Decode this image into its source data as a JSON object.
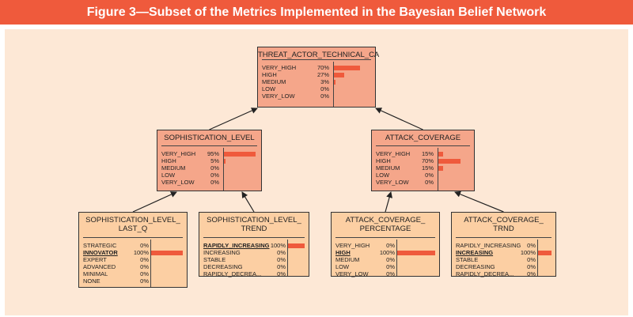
{
  "figure": {
    "title": "Figure 3—Subset of the Metrics Implemented in the Bayesian Belief Network"
  },
  "colors": {
    "title_bar": "#ef5a3c",
    "panel": "#fde8d6",
    "inner_node": "#f5a68a",
    "leaf_node": "#fccfa3",
    "bar": "#ef5a3c"
  },
  "nodes": [
    {
      "id": "threat",
      "title_lines": [
        "THREAT_ACTOR_TECHNICAL_CA"
      ],
      "tier": "inner",
      "states": [
        {
          "label": "VERY_HIGH",
          "pct": "70%",
          "value": 70
        },
        {
          "label": "HIGH",
          "pct": "27%",
          "value": 27
        },
        {
          "label": "MEDIUM",
          "pct": "3%",
          "value": 3
        },
        {
          "label": "LOW",
          "pct": "0%",
          "value": 0
        },
        {
          "label": "VERY_LOW",
          "pct": "0%",
          "value": 0
        }
      ]
    },
    {
      "id": "soph",
      "title_lines": [
        "SOPHISTICATION_LEVEL"
      ],
      "tier": "inner",
      "states": [
        {
          "label": "VERY_HIGH",
          "pct": "95%",
          "value": 95
        },
        {
          "label": "HIGH",
          "pct": "5%",
          "value": 5
        },
        {
          "label": "MEDIUM",
          "pct": "0%",
          "value": 0
        },
        {
          "label": "LOW",
          "pct": "0%",
          "value": 0
        },
        {
          "label": "VERY_LOW",
          "pct": "0%",
          "value": 0
        }
      ]
    },
    {
      "id": "attack",
      "title_lines": [
        "ATTACK_COVERAGE"
      ],
      "tier": "inner",
      "states": [
        {
          "label": "VERY_HIGH",
          "pct": "15%",
          "value": 15
        },
        {
          "label": "HIGH",
          "pct": "70%",
          "value": 70
        },
        {
          "label": "MEDIUM",
          "pct": "15%",
          "value": 15
        },
        {
          "label": "LOW",
          "pct": "0%",
          "value": 0
        },
        {
          "label": "VERY_LOW",
          "pct": "0%",
          "value": 0
        }
      ]
    },
    {
      "id": "soph_last",
      "title_lines": [
        "SOPHISTICATION_LEVEL_",
        "LAST_Q"
      ],
      "tier": "leaf",
      "states": [
        {
          "label": "STRATEGIC",
          "pct": "0%",
          "value": 0
        },
        {
          "label": "INNOVATOR",
          "pct": "100%",
          "value": 100,
          "selected": true
        },
        {
          "label": "EXPERT",
          "pct": "0%",
          "value": 0
        },
        {
          "label": "ADVANCED",
          "pct": "0%",
          "value": 0
        },
        {
          "label": "MINIMAL",
          "pct": "0%",
          "value": 0
        },
        {
          "label": "NONE",
          "pct": "0%",
          "value": 0
        }
      ]
    },
    {
      "id": "soph_trend",
      "title_lines": [
        "SOPHISTICATION_LEVEL_",
        "TREND"
      ],
      "tier": "leaf",
      "states": [
        {
          "label": "RAPIDLY_INCREASING",
          "pct": "100%",
          "value": 100,
          "selected": true
        },
        {
          "label": "INCREASING",
          "pct": "0%",
          "value": 0
        },
        {
          "label": "STABLE",
          "pct": "0%",
          "value": 0
        },
        {
          "label": "DECREASING",
          "pct": "0%",
          "value": 0
        },
        {
          "label": "RAPIDLY_DECREA...",
          "pct": "0%",
          "value": 0
        }
      ]
    },
    {
      "id": "attack_pct",
      "title_lines": [
        "ATTACK_COVERAGE_",
        "PERCENTAGE"
      ],
      "tier": "leaf",
      "states": [
        {
          "label": "VERY_HIGH",
          "pct": "0%",
          "value": 0
        },
        {
          "label": "HIGH",
          "pct": "100%",
          "value": 100,
          "selected": true
        },
        {
          "label": "MEDIUM",
          "pct": "0%",
          "value": 0
        },
        {
          "label": "LOW",
          "pct": "0%",
          "value": 0
        },
        {
          "label": "VERY_LOW",
          "pct": "0%",
          "value": 0
        }
      ]
    },
    {
      "id": "attack_trnd",
      "title_lines": [
        "ATTACK_COVERAGE_",
        "TRND"
      ],
      "tier": "leaf",
      "states": [
        {
          "label": "RAPIDLY_INCREASING",
          "pct": "0%",
          "value": 0
        },
        {
          "label": "INCREASING",
          "pct": "100%",
          "value": 100,
          "selected": true
        },
        {
          "label": "STABLE",
          "pct": "0%",
          "value": 0
        },
        {
          "label": "DECREASING",
          "pct": "0%",
          "value": 0
        },
        {
          "label": "RAPIDLY_DECREA...",
          "pct": "0%",
          "value": 0
        }
      ]
    }
  ],
  "edges": [
    {
      "from": "soph",
      "to": "threat"
    },
    {
      "from": "attack",
      "to": "threat"
    },
    {
      "from": "soph_last",
      "to": "soph"
    },
    {
      "from": "soph_trend",
      "to": "soph"
    },
    {
      "from": "attack_pct",
      "to": "attack"
    },
    {
      "from": "attack_trnd",
      "to": "attack"
    }
  ]
}
